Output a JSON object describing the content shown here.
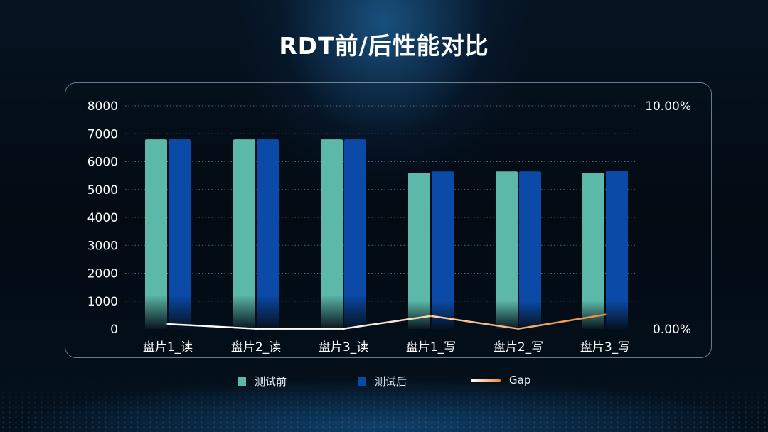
{
  "title": "RDT前/后性能对比",
  "colors": {
    "before": "#5cb8a8",
    "after": "#0b4aa6",
    "gap_start": "#ffffff",
    "gap_end": "#f08a3c",
    "grid": "#6f8296"
  },
  "chart_data": {
    "type": "bar",
    "title": "RDT前/后性能对比",
    "categories": [
      "盘片1_读",
      "盘片2_读",
      "盘片3_读",
      "盘片1_写",
      "盘片2_写",
      "盘片3_写"
    ],
    "series": [
      {
        "name": "测试前",
        "type": "bar",
        "axis": "left",
        "values": [
          6800,
          6800,
          6800,
          5600,
          5650,
          5600
        ]
      },
      {
        "name": "测试后",
        "type": "bar",
        "axis": "left",
        "values": [
          6800,
          6800,
          6800,
          5650,
          5650,
          5680
        ]
      },
      {
        "name": "Gap",
        "type": "line",
        "axis": "right",
        "values": [
          0.0022,
          0.0001,
          0.0001,
          0.0058,
          0.0001,
          0.0064
        ]
      }
    ],
    "y_left": {
      "min": 0,
      "max": 8000,
      "ticks": [
        0,
        1000,
        2000,
        3000,
        4000,
        5000,
        6000,
        7000,
        8000
      ]
    },
    "y_right": {
      "min": 0,
      "max": 0.1,
      "tick_labels": [
        "0.00%",
        "10.00%"
      ]
    },
    "grid": "horizontal dotted",
    "legend": "bottom-center"
  },
  "legend": [
    {
      "label": "测试前"
    },
    {
      "label": "测试后"
    },
    {
      "label": "Gap"
    }
  ]
}
